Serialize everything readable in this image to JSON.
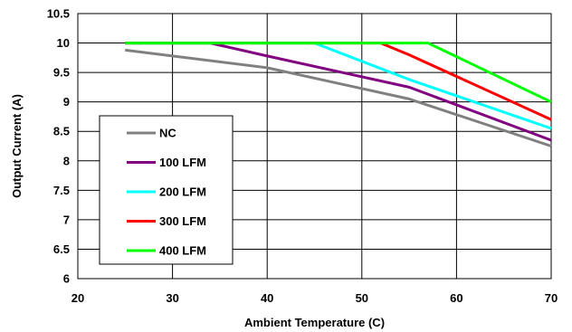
{
  "chart_data": {
    "type": "line",
    "xlabel": "Ambient Temperature (C)",
    "ylabel": "Output Current (A)",
    "xlim": [
      20,
      70
    ],
    "ylim": [
      6,
      10.5
    ],
    "x_ticks": [
      20,
      30,
      40,
      50,
      60,
      70
    ],
    "y_ticks": [
      6,
      6.5,
      7,
      7.5,
      8,
      8.5,
      9,
      9.5,
      10,
      10.5
    ],
    "x_tick_labels": [
      "20",
      "30",
      "40",
      "50",
      "60",
      "70"
    ],
    "y_tick_labels": [
      "6",
      "6.5",
      "7",
      "7.5",
      "8",
      "8.5",
      "9",
      "9.5",
      "10",
      "10.5"
    ],
    "grid": true,
    "legend_position": "left",
    "series": [
      {
        "name": "NC",
        "color": "#808080",
        "points": [
          [
            25,
            9.88
          ],
          [
            40,
            9.58
          ],
          [
            55,
            9.05
          ],
          [
            70,
            8.25
          ]
        ]
      },
      {
        "name": "100 LFM",
        "color": "#800080",
        "points": [
          [
            25,
            10
          ],
          [
            34,
            10
          ],
          [
            40,
            9.78
          ],
          [
            55,
            9.25
          ],
          [
            70,
            8.35
          ]
        ]
      },
      {
        "name": "200 LFM",
        "color": "#00ffff",
        "points": [
          [
            25,
            10
          ],
          [
            45,
            10
          ],
          [
            55,
            9.38
          ],
          [
            70,
            8.55
          ]
        ]
      },
      {
        "name": "300 LFM",
        "color": "#ff0000",
        "points": [
          [
            25,
            10
          ],
          [
            52,
            10
          ],
          [
            55,
            9.8
          ],
          [
            70,
            8.7
          ]
        ]
      },
      {
        "name": "400 LFM",
        "color": "#00ff00",
        "points": [
          [
            25,
            10
          ],
          [
            57,
            10
          ],
          [
            70,
            9.0
          ]
        ]
      }
    ]
  }
}
